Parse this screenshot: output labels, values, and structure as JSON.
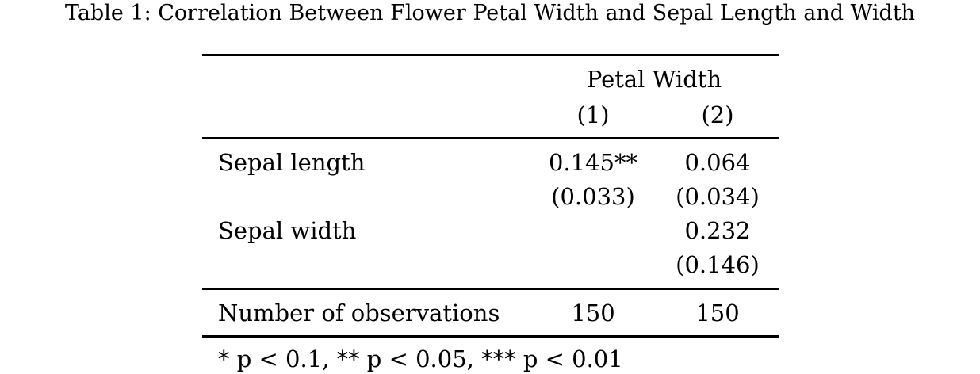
{
  "caption": "Table 1: Correlation Between Flower Petal Width and Sepal Length and Width",
  "table": {
    "dependent_variable": "Petal Width",
    "model_labels": [
      "(1)",
      "(2)"
    ],
    "rows": [
      {
        "label": "Sepal length",
        "values": [
          "0.145**",
          "0.064"
        ],
        "se": [
          "(0.033)",
          "(0.034)"
        ]
      },
      {
        "label": "Sepal width",
        "values": [
          "",
          "0.232"
        ],
        "se": [
          "",
          "(0.146)"
        ]
      }
    ],
    "stats": {
      "label": "Number of observations",
      "values": [
        "150",
        "150"
      ]
    },
    "note": "* p < 0.1, ** p < 0.05, *** p < 0.01"
  }
}
